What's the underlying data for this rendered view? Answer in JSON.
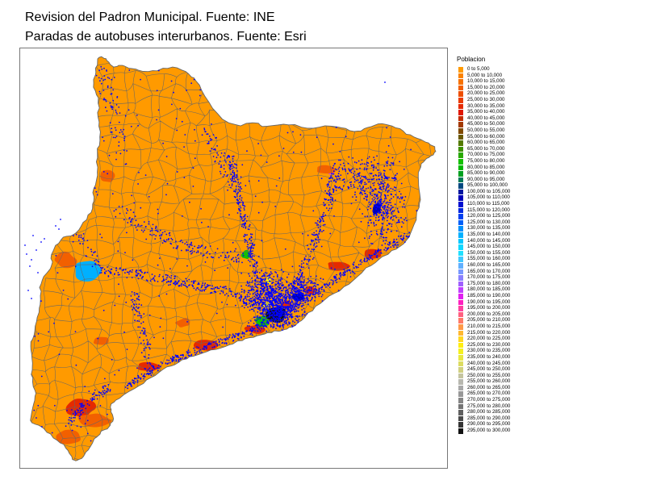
{
  "titles": {
    "line1": "Revision del Padron Municipal. Fuente: INE",
    "line2": "Paradas de autobuses interurbanos. Fuente: Esri"
  },
  "legend": {
    "title": "Poblacion",
    "entries": [
      {
        "label": "0 to 5,000",
        "color": "#ff9a00"
      },
      {
        "label": "5,000 to 10,000",
        "color": "#fb8200"
      },
      {
        "label": "10,000 to 15,000",
        "color": "#f77200"
      },
      {
        "label": "15,000 to 20,000",
        "color": "#f26000"
      },
      {
        "label": "20,000 to 25,000",
        "color": "#ee4e00"
      },
      {
        "label": "25,000 to 30,000",
        "color": "#ea3c00"
      },
      {
        "label": "30,000 to 35,000",
        "color": "#e52a00"
      },
      {
        "label": "35,000 to 40,000",
        "color": "#e01800"
      },
      {
        "label": "40,000 to 45,000",
        "color": "#c42c00"
      },
      {
        "label": "45,000 to 50,000",
        "color": "#a23a00"
      },
      {
        "label": "50,000 to 55,000",
        "color": "#804a00"
      },
      {
        "label": "55,000 to 60,000",
        "color": "#6a5a00"
      },
      {
        "label": "60,000 to 65,000",
        "color": "#547a00"
      },
      {
        "label": "65,000 to 70,000",
        "color": "#3e9000"
      },
      {
        "label": "70,000 to 75,000",
        "color": "#28a800"
      },
      {
        "label": "75,000 to 80,000",
        "color": "#14c000"
      },
      {
        "label": "80,000 to 85,000",
        "color": "#00b800"
      },
      {
        "label": "85,000 to 90,000",
        "color": "#00a020"
      },
      {
        "label": "90,000 to 95,000",
        "color": "#007858"
      },
      {
        "label": "95,000 to 100,000",
        "color": "#004880"
      },
      {
        "label": "100,000 to 105,000",
        "color": "#0018a0"
      },
      {
        "label": "105,000 to 110,000",
        "color": "#0000b8"
      },
      {
        "label": "110,000 to 115,000",
        "color": "#0010d0"
      },
      {
        "label": "115,000 to 120,000",
        "color": "#0028e0"
      },
      {
        "label": "120,000 to 125,000",
        "color": "#0040f0"
      },
      {
        "label": "125,000 to 130,000",
        "color": "#0060f8"
      },
      {
        "label": "130,000 to 135,000",
        "color": "#0090fc"
      },
      {
        "label": "135,000 to 140,000",
        "color": "#00b0ff"
      },
      {
        "label": "140,000 to 145,000",
        "color": "#00c8ff"
      },
      {
        "label": "145,000 to 150,000",
        "color": "#10d8ff"
      },
      {
        "label": "150,000 to 155,000",
        "color": "#20e0ff"
      },
      {
        "label": "155,000 to 160,000",
        "color": "#40c8ff"
      },
      {
        "label": "160,000 to 165,000",
        "color": "#60b0ff"
      },
      {
        "label": "165,000 to 170,000",
        "color": "#7898ff"
      },
      {
        "label": "170,000 to 175,000",
        "color": "#8a80ff"
      },
      {
        "label": "175,000 to 180,000",
        "color": "#a060ff"
      },
      {
        "label": "180,000 to 185,000",
        "color": "#c040ff"
      },
      {
        "label": "185,000 to 190,000",
        "color": "#e020f0"
      },
      {
        "label": "190,000 to 195,000",
        "color": "#ff20c0"
      },
      {
        "label": "195,000 to 200,000",
        "color": "#ff40a0"
      },
      {
        "label": "200,000 to 205,000",
        "color": "#ff6080"
      },
      {
        "label": "205,000 to 210,000",
        "color": "#ff7a68"
      },
      {
        "label": "210,000 to 215,000",
        "color": "#ff9a48"
      },
      {
        "label": "215,000 to 220,000",
        "color": "#ffb830"
      },
      {
        "label": "220,000 to 225,000",
        "color": "#ffd820"
      },
      {
        "label": "225,000 to 230,000",
        "color": "#ffee10"
      },
      {
        "label": "230,000 to 235,000",
        "color": "#f4f020"
      },
      {
        "label": "235,000 to 240,000",
        "color": "#e8e840"
      },
      {
        "label": "240,000 to 245,000",
        "color": "#dcdc60"
      },
      {
        "label": "245,000 to 250,000",
        "color": "#d0d080"
      },
      {
        "label": "250,000 to 255,000",
        "color": "#c4c4a0"
      },
      {
        "label": "255,000 to 260,000",
        "color": "#b8b8b0"
      },
      {
        "label": "260,000 to 265,000",
        "color": "#a8a8a8"
      },
      {
        "label": "265,000 to 270,000",
        "color": "#989898"
      },
      {
        "label": "270,000 to 275,000",
        "color": "#868686"
      },
      {
        "label": "275,000 to 280,000",
        "color": "#747474"
      },
      {
        "label": "280,000 to 285,000",
        "color": "#606060"
      },
      {
        "label": "285,000 to 290,000",
        "color": "#4a4a4a"
      },
      {
        "label": "290,000 to 295,000",
        "color": "#343434"
      },
      {
        "label": "295,000 to 300,000",
        "color": "#121212"
      }
    ]
  },
  "map": {
    "base_fill": "#ff9a00",
    "border_color": "#666666",
    "bus_stop_color": "#0000ff",
    "highlight_colors": {
      "coast_red": "#e52a00",
      "mid_orange": "#f26000",
      "cyan_city": "#00b0ff",
      "green_city": "#14c000",
      "dark_city": "#121212",
      "yellow_city": "#ffee10",
      "magenta_city": "#c040ff",
      "deep_blue": "#0000b8"
    }
  }
}
